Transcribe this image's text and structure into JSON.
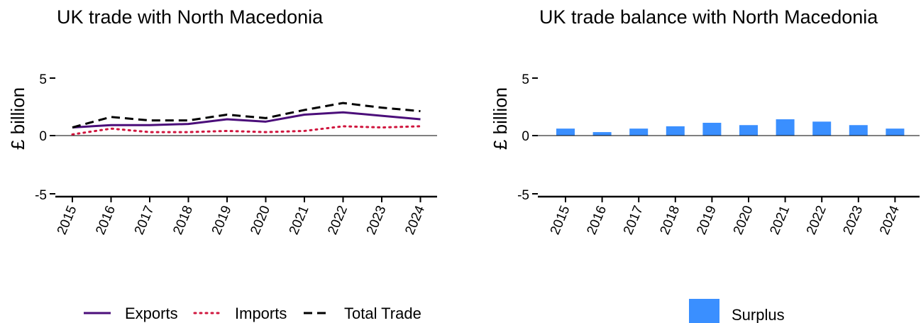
{
  "chart_data": [
    {
      "type": "line",
      "title": "UK trade with North Macedonia",
      "xlabel": "",
      "ylabel": "£ billion",
      "x": [
        "2015",
        "2016",
        "2017",
        "2018",
        "2019",
        "2020",
        "2021",
        "2022",
        "2023",
        "2024"
      ],
      "ylim": [
        -5,
        5
      ],
      "yticks": [
        "5",
        "0",
        "-5"
      ],
      "series": [
        {
          "name": "Exports",
          "color": "#4b0e7a",
          "style": "solid",
          "values": [
            0.7,
            0.9,
            0.9,
            1.0,
            1.4,
            1.2,
            1.8,
            2.0,
            1.7,
            1.4
          ]
        },
        {
          "name": "Imports",
          "color": "#d0163e",
          "style": "dotted",
          "values": [
            0.1,
            0.6,
            0.3,
            0.3,
            0.4,
            0.3,
            0.4,
            0.8,
            0.7,
            0.8
          ]
        },
        {
          "name": "Total Trade",
          "color": "#000000",
          "style": "dashed",
          "values": [
            0.7,
            1.6,
            1.3,
            1.3,
            1.8,
            1.5,
            2.2,
            2.8,
            2.4,
            2.1
          ]
        }
      ],
      "legend": "bottom",
      "grid": false
    },
    {
      "type": "bar",
      "title": "UK trade balance with North Macedonia",
      "xlabel": "",
      "ylabel": "£ billion",
      "categories": [
        "2015",
        "2016",
        "2017",
        "2018",
        "2019",
        "2020",
        "2021",
        "2022",
        "2023",
        "2024"
      ],
      "ylim": [
        -5,
        5
      ],
      "yticks": [
        "5",
        "0",
        "-5"
      ],
      "series": [
        {
          "name": "Surplus",
          "color": "#3a8fff",
          "values": [
            0.6,
            0.3,
            0.6,
            0.8,
            1.1,
            0.9,
            1.4,
            1.2,
            0.9,
            0.6
          ]
        }
      ],
      "legend": "bottom",
      "grid": false
    }
  ]
}
